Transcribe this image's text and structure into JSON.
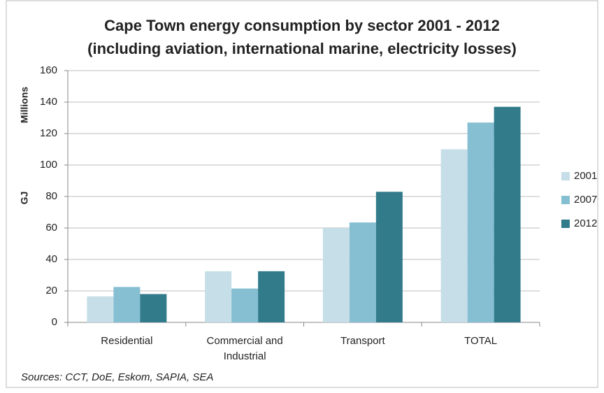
{
  "chart_data": {
    "type": "bar",
    "title": [
      "Cape Town energy consumption by sector 2001 - 2012",
      "(including aviation, international marine, electricity losses)"
    ],
    "y_label": "GJ",
    "y_unit_label": "Millions",
    "categories": [
      "Residential",
      "Commercial and Industrial",
      "Transport",
      "TOTAL"
    ],
    "series": [
      {
        "name": "2001",
        "color": "#c6dee7",
        "values": [
          16.5,
          32.5,
          60,
          110
        ]
      },
      {
        "name": "2007",
        "color": "#86bfd2",
        "values": [
          22.5,
          21.5,
          63.5,
          127
        ]
      },
      {
        "name": "2012",
        "color": "#327b8b",
        "values": [
          18,
          32.5,
          83,
          137
        ]
      }
    ],
    "ylim": [
      0,
      160
    ],
    "yticks": [
      0,
      20,
      40,
      60,
      80,
      100,
      120,
      140,
      160
    ],
    "grid": true,
    "legend": "right",
    "source": "Sources: CCT, DoE, Eskom, SAPIA, SEA"
  }
}
